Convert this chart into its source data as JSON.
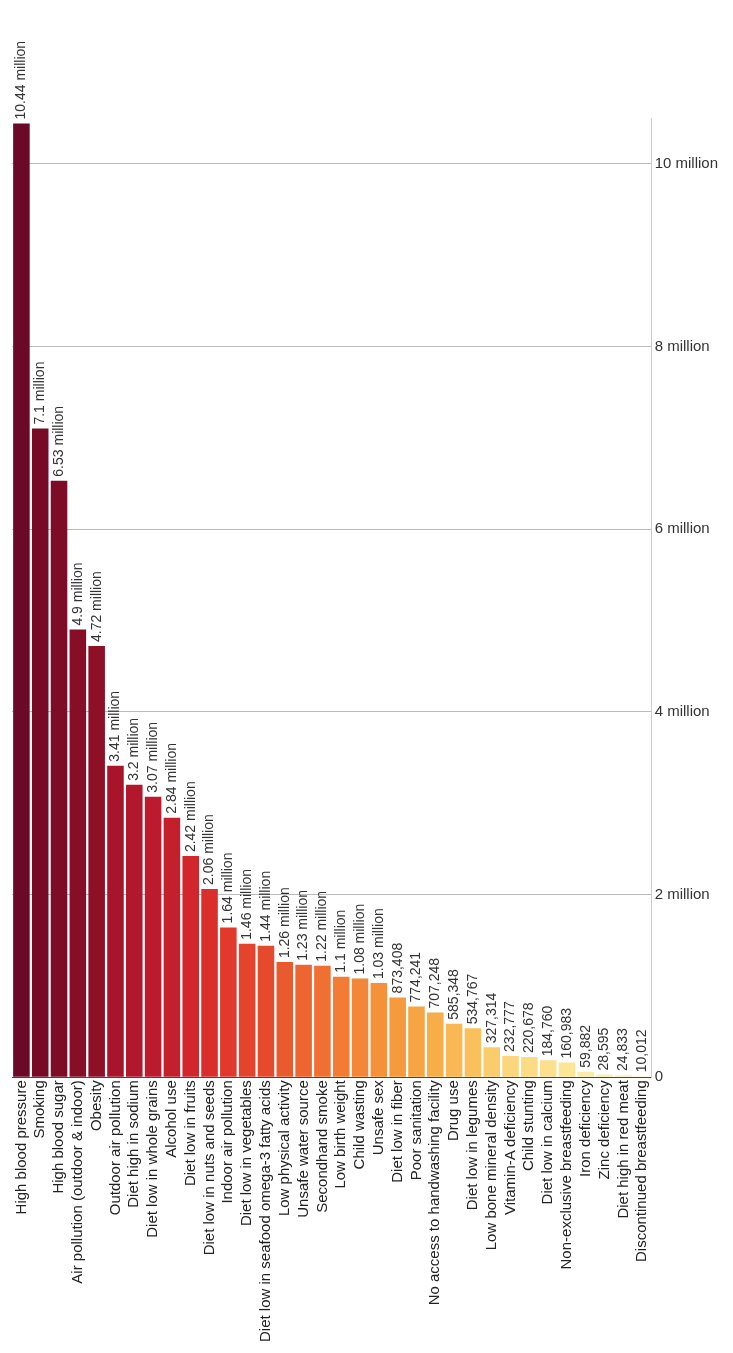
{
  "chart_data": {
    "type": "bar",
    "categories": [
      "High blood pressure",
      "Smoking",
      "High blood sugar",
      "Air pollution (outdoor & indoor)",
      "Obesity",
      "Outdoor air pollution",
      "Diet high in sodium",
      "Diet low in whole grains",
      "Alcohol use",
      "Diet low in fruits",
      "Diet low in nuts and seeds",
      "Indoor air pollution",
      "Diet low in vegetables",
      "Diet low in seafood omega-3 fatty acids",
      "Low physical activity",
      "Unsafe water source",
      "Secondhand smoke",
      "Low birth weight",
      "Child wasting",
      "Unsafe sex",
      "Diet low in fiber",
      "Poor sanitation",
      "No access to handwashing facility",
      "Drug use",
      "Diet low in legumes",
      "Low bone mineral density",
      "Vitamin-A deficiency",
      "Child stunting",
      "Diet low in calcium",
      "Non-exclusive breastfeeding",
      "Iron deficiency",
      "Zinc deficiency",
      "Diet high in red meat",
      "Discontinued breastfeeding"
    ],
    "values": [
      10440000,
      7100000,
      6530000,
      4900000,
      4720000,
      3410000,
      3200000,
      3070000,
      2840000,
      2420000,
      2060000,
      1640000,
      1460000,
      1440000,
      1260000,
      1230000,
      1220000,
      1100000,
      1080000,
      1030000,
      873408,
      774241,
      707248,
      585348,
      534767,
      327314,
      232777,
      220678,
      184760,
      160983,
      59882,
      28595,
      24833,
      10012
    ],
    "value_labels": [
      "10.44 million",
      "7.1 million",
      "6.53 million",
      "4.9 million",
      "4.72 million",
      "3.41 million",
      "3.2 million",
      "3.07 million",
      "2.84 million",
      "2.42 million",
      "2.06 million",
      "1.64 million",
      "1.46 million",
      "1.44 million",
      "1.26 million",
      "1.23 million",
      "1.22 million",
      "1.1 million",
      "1.08 million",
      "1.03 million",
      "873,408",
      "774,241",
      "707,248",
      "585,348",
      "534,767",
      "327,314",
      "232,777",
      "220,678",
      "184,760",
      "160,983",
      "59,882",
      "28,595",
      "24,833",
      "10,012"
    ],
    "colors": [
      "#6b0a28",
      "#760a27",
      "#7d0c26",
      "#860e26",
      "#8e1026",
      "#a8152a",
      "#b2182b",
      "#bb1b2c",
      "#c41f2c",
      "#d0262c",
      "#d92e2c",
      "#e13a2c",
      "#e4432c",
      "#e64a2d",
      "#ea5a2f",
      "#ed6530",
      "#ef7032",
      "#f27c35",
      "#f48737",
      "#f59139",
      "#f69b3d",
      "#f7a542",
      "#f8ae48",
      "#f9b853",
      "#fac05b",
      "#fbcc6c",
      "#fcd67c",
      "#fcdb84",
      "#fde08d",
      "#fde497",
      "#feeaa8",
      "#feefb6",
      "#fef2c0",
      "#fef5ca"
    ],
    "ylim": [
      0,
      10500000
    ],
    "yticks": [
      0,
      {
        "value": 2000000,
        "label": "2 million"
      },
      {
        "value": 4000000,
        "label": "4 million"
      },
      {
        "value": 6000000,
        "label": "6 million"
      },
      {
        "value": 8000000,
        "label": "8 million"
      },
      {
        "value": 10000000,
        "label": "10 million"
      }
    ],
    "grid": "y"
  }
}
